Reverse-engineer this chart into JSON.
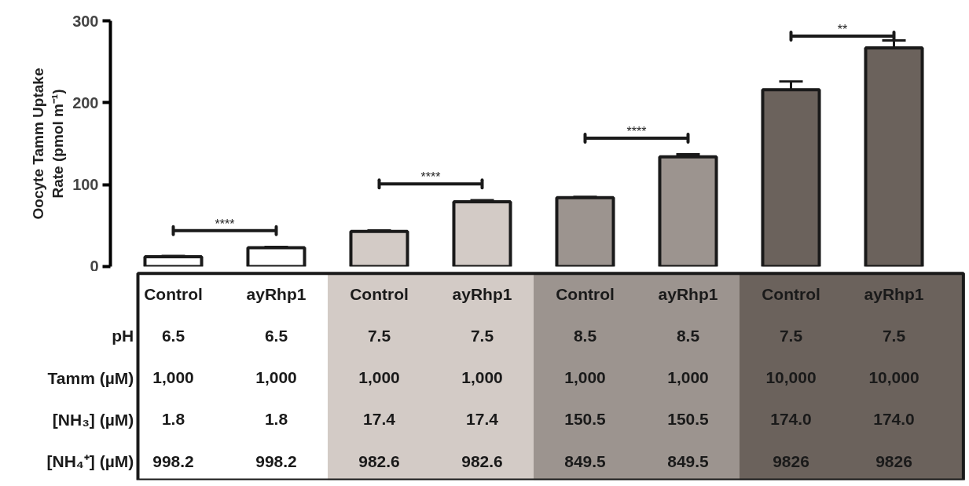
{
  "chart_data": {
    "type": "bar",
    "ylabel": "Oocyte Tamm Uptake\nRate (pmol m⁻¹)",
    "categories": [
      "Control",
      "ayRhp1",
      "Control",
      "ayRhp1",
      "Control",
      "ayRhp1",
      "Control",
      "ayRhp1"
    ],
    "values": [
      12,
      23,
      43,
      79,
      84,
      134,
      216,
      267
    ],
    "errors": [
      1,
      1,
      1,
      2,
      1,
      3,
      10,
      9
    ],
    "colors": [
      "#ffffff",
      "#ffffff",
      "#d3cbc6",
      "#d3cbc6",
      "#9c948f",
      "#9c948f",
      "#6b625c",
      "#6b625c"
    ],
    "ylim": [
      0,
      300
    ],
    "yticks": [
      0,
      100,
      200,
      300
    ],
    "grid": false,
    "annotations": [
      "****",
      "****",
      "****",
      "**",
      "pH",
      "6.5",
      "6.5",
      "7.5",
      "7.5",
      "8.5",
      "8.5",
      "7.5",
      "7.5",
      "Tamm (µM)",
      "1,000",
      "1,000",
      "1,000",
      "1,000",
      "1,000",
      "1,000",
      "10,000",
      "10,000",
      "[NH₃] (µM)",
      "1.8",
      "1.8",
      "17.4",
      "17.4",
      "150.5",
      "150.5",
      "174.0",
      "174.0",
      "[NH₄⁺] (µM)",
      "998.2",
      "998.2",
      "982.6",
      "982.6",
      "849.5",
      "849.5",
      "9826",
      "9826"
    ]
  }
}
